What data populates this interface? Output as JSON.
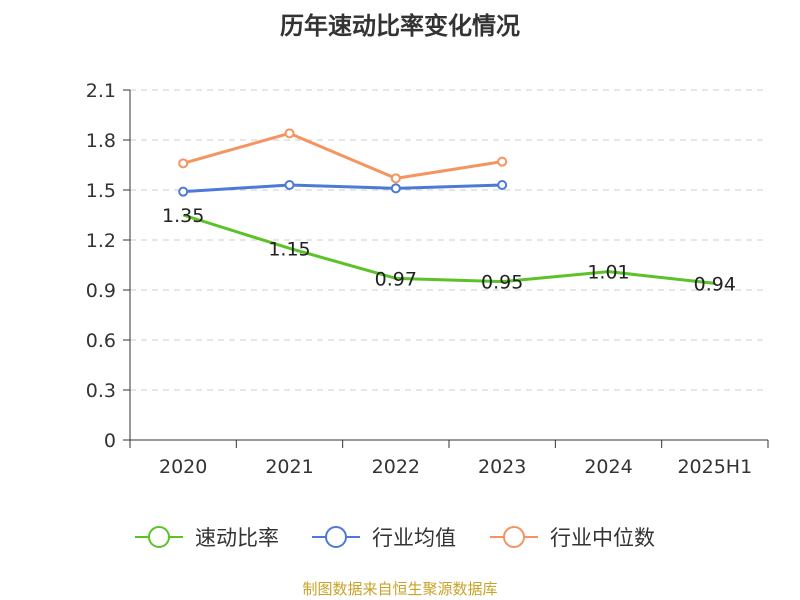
{
  "chart_data": {
    "type": "line",
    "title": "历年速动比率变化情况",
    "source": "制图数据来自恒生聚源数据库",
    "categories": [
      "2020",
      "2021",
      "2022",
      "2023",
      "2024",
      "2025H1"
    ],
    "ylim": [
      0,
      2.1
    ],
    "yticks": [
      "0",
      "0.3",
      "0.6",
      "0.9",
      "1.2",
      "1.5",
      "1.8",
      "2.1"
    ],
    "grid": true,
    "legend_position": "bottom",
    "series": [
      {
        "name": "速动比率",
        "color": "#5bc228",
        "values": [
          1.35,
          1.15,
          0.97,
          0.95,
          1.01,
          0.94
        ],
        "labels": [
          "1.35",
          "1.15",
          "0.97",
          "0.95",
          "1.01",
          "0.94"
        ]
      },
      {
        "name": "行业均值",
        "color": "#4c7ad6",
        "values": [
          1.49,
          1.53,
          1.51,
          1.53,
          null,
          null
        ]
      },
      {
        "name": "行业中位数",
        "color": "#f59460",
        "values": [
          1.66,
          1.84,
          1.57,
          1.67,
          null,
          null
        ]
      }
    ]
  }
}
